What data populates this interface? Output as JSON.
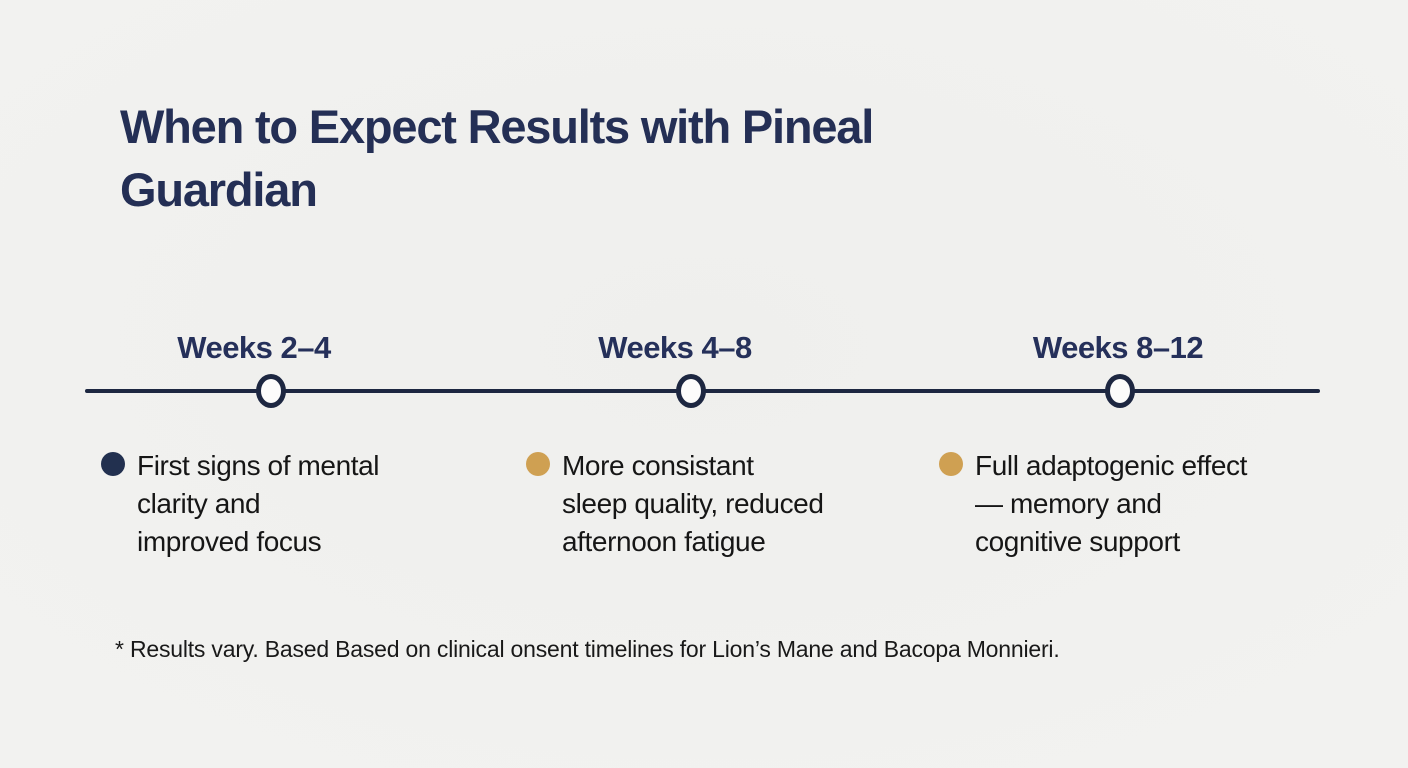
{
  "title": {
    "lines": [
      "When to Expect Results with Pineal",
      "Guardian"
    ]
  },
  "timeline": {
    "marker_style": "open-circle",
    "axis_color": "#1d2741"
  },
  "milestones": [
    {
      "label": "Weeks 2–4",
      "bullet_color": "#22304f",
      "lines": [
        "First signs of mental",
        "clarity and",
        "improved focus"
      ]
    },
    {
      "label": "Weeks 4–8",
      "bullet_color": "#cfa052",
      "lines": [
        "More consistant",
        "sleep quality, reduced",
        "afternoon fatigue"
      ]
    },
    {
      "label": "Weeks 8–12",
      "bullet_color": "#cfa052",
      "lines": [
        "Full adaptogenic effect",
        "— memory and",
        "cognitive support"
      ]
    }
  ],
  "footnote": "* Results vary. Based Based on clinical onsent timelines for Lion’s Mane and Bacopa Monnieri.",
  "colors": {
    "heading_navy": "#242f55",
    "timeline_navy": "#1d2741",
    "gold": "#cfa052",
    "body_text": "#161616",
    "background": "#f1f1ef"
  }
}
